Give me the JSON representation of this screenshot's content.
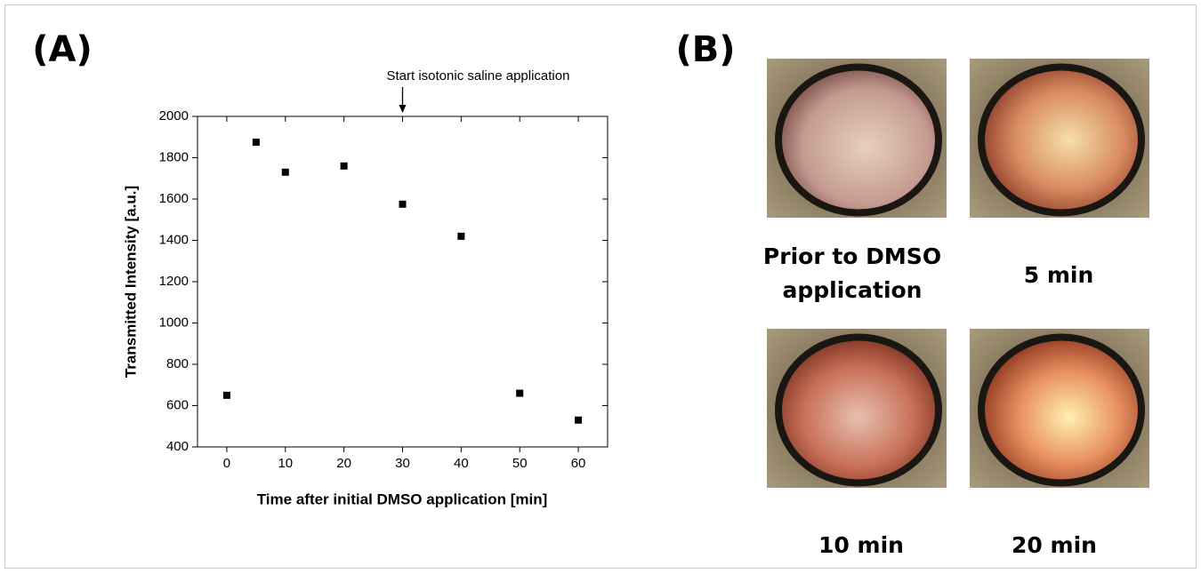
{
  "panel_labels": [
    "(A)",
    "(B)"
  ],
  "chart_data": {
    "type": "scatter",
    "annotation": {
      "text": "Start isotonic saline application",
      "x": 30
    },
    "x_label": "Time after initial DMSO application [min]",
    "y_label": "Transmitted Intensity [a.u.]",
    "x": [
      0,
      5,
      10,
      20,
      30,
      40,
      50,
      60
    ],
    "values": [
      650,
      1875,
      1730,
      1760,
      1575,
      1420,
      660,
      530
    ],
    "color": "#000000",
    "xlim": [
      -5,
      65
    ],
    "xticks": [
      0,
      10,
      20,
      30,
      40,
      50,
      60
    ],
    "ylim": [
      400,
      2000
    ],
    "yticks": [
      400,
      600,
      800,
      1000,
      1200,
      1400,
      1600,
      1800,
      2000
    ],
    "grid": false
  },
  "photos": [
    {
      "caption": [
        "Prior to DMSO",
        "application"
      ]
    },
    {
      "caption": [
        "5 min"
      ]
    },
    {
      "caption": [
        "10 min"
      ]
    },
    {
      "caption": [
        "20 min"
      ]
    }
  ]
}
